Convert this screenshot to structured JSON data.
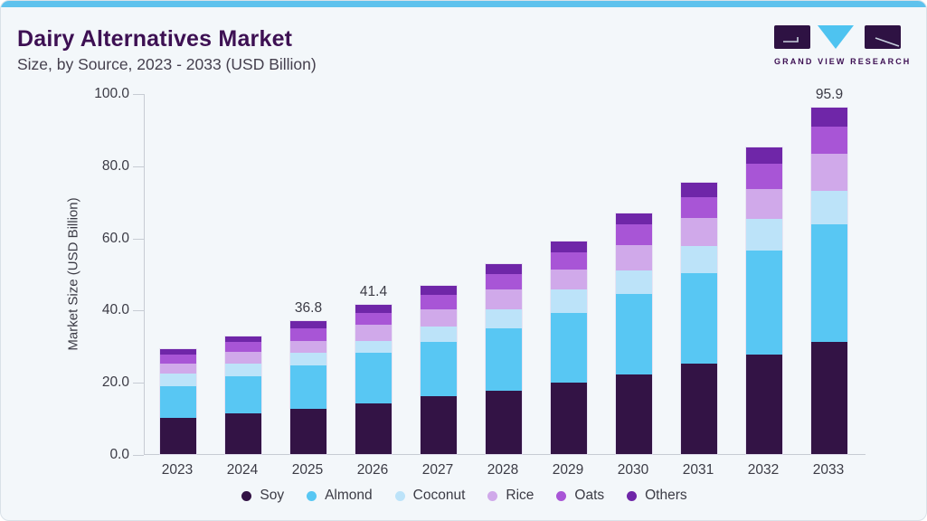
{
  "card": {
    "title": "Dairy Alternatives Market",
    "subtitle": "Size, by Source, 2023 - 2033 (USD Billion)",
    "accent_color": "#5EC2ED",
    "background_color": "#F3F7FA"
  },
  "logo": {
    "text": "GRAND VIEW RESEARCH",
    "dark_color": "#2E1243",
    "blue_color": "#4EC3F0"
  },
  "chart_data": {
    "type": "bar",
    "stacked": true,
    "title": "Dairy Alternatives Market Size, by Source, 2023 - 2033 (USD Billion)",
    "xlabel": "",
    "ylabel": "Market Size (USD Billion)",
    "ylim": [
      0,
      100
    ],
    "yticks": [
      "100.0",
      "80.0",
      "60.0",
      "40.0",
      "20.0",
      "0.0"
    ],
    "grid": false,
    "legend_position": "bottom",
    "categories": [
      "2023",
      "2024",
      "2025",
      "2026",
      "2027",
      "2028",
      "2029",
      "2030",
      "2031",
      "2032",
      "2033"
    ],
    "series": [
      {
        "name": "Soy",
        "color": "#331345",
        "values": [
          10.1,
          11.4,
          12.6,
          14.1,
          16.0,
          17.5,
          19.8,
          22.1,
          25.1,
          27.6,
          31.1
        ]
      },
      {
        "name": "Almond",
        "color": "#58C7F3",
        "values": [
          8.8,
          10.1,
          11.9,
          13.9,
          15.0,
          17.4,
          19.3,
          22.2,
          25.0,
          28.9,
          32.5
        ]
      },
      {
        "name": "Coconut",
        "color": "#BCE3F9",
        "values": [
          3.4,
          3.6,
          3.5,
          3.4,
          4.4,
          5.3,
          6.4,
          6.6,
          7.6,
          8.6,
          9.4
        ]
      },
      {
        "name": "Rice",
        "color": "#D0A9EA",
        "values": [
          2.8,
          3.1,
          3.4,
          4.4,
          4.8,
          5.3,
          5.7,
          7.0,
          7.8,
          8.4,
          10.1
        ]
      },
      {
        "name": "Oats",
        "color": "#A855D6",
        "values": [
          2.5,
          2.8,
          3.4,
          3.3,
          4.0,
          4.4,
          4.8,
          5.8,
          5.7,
          6.9,
          7.6
        ]
      },
      {
        "name": "Others",
        "color": "#6F26A8",
        "values": [
          1.4,
          1.7,
          2.0,
          2.3,
          2.3,
          2.7,
          3.0,
          3.0,
          4.0,
          4.6,
          5.2
        ]
      }
    ],
    "totals": [
      29.0,
      32.7,
      36.8,
      41.4,
      46.5,
      52.6,
      59.0,
      66.7,
      75.2,
      85.0,
      95.9
    ],
    "bar_labels": {
      "2025": "36.8",
      "2026": "41.4",
      "2033": "95.9"
    }
  }
}
